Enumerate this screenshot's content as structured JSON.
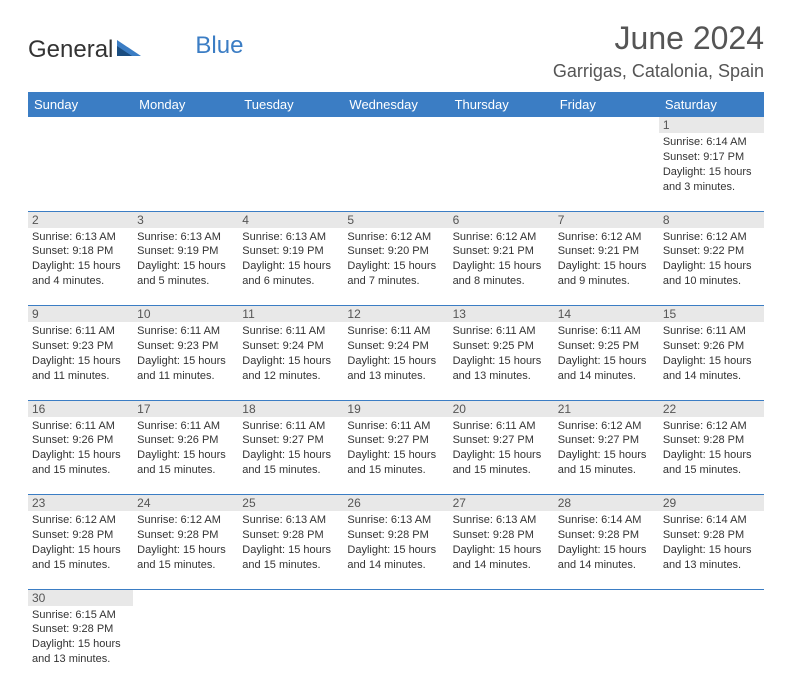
{
  "logo": {
    "text1": "General",
    "text2": "Blue"
  },
  "header": {
    "title": "June 2024",
    "location": "Garrigas, Catalonia, Spain"
  },
  "daysOfWeek": [
    "Sunday",
    "Monday",
    "Tuesday",
    "Wednesday",
    "Thursday",
    "Friday",
    "Saturday"
  ],
  "colors": {
    "accent": "#3b7dc4",
    "grayRow": "#e8e8e8"
  },
  "days": {
    "d1": {
      "num": "1",
      "sunrise": "Sunrise: 6:14 AM",
      "sunset": "Sunset: 9:17 PM",
      "daylight": "Daylight: 15 hours and 3 minutes."
    },
    "d2": {
      "num": "2",
      "sunrise": "Sunrise: 6:13 AM",
      "sunset": "Sunset: 9:18 PM",
      "daylight": "Daylight: 15 hours and 4 minutes."
    },
    "d3": {
      "num": "3",
      "sunrise": "Sunrise: 6:13 AM",
      "sunset": "Sunset: 9:19 PM",
      "daylight": "Daylight: 15 hours and 5 minutes."
    },
    "d4": {
      "num": "4",
      "sunrise": "Sunrise: 6:13 AM",
      "sunset": "Sunset: 9:19 PM",
      "daylight": "Daylight: 15 hours and 6 minutes."
    },
    "d5": {
      "num": "5",
      "sunrise": "Sunrise: 6:12 AM",
      "sunset": "Sunset: 9:20 PM",
      "daylight": "Daylight: 15 hours and 7 minutes."
    },
    "d6": {
      "num": "6",
      "sunrise": "Sunrise: 6:12 AM",
      "sunset": "Sunset: 9:21 PM",
      "daylight": "Daylight: 15 hours and 8 minutes."
    },
    "d7": {
      "num": "7",
      "sunrise": "Sunrise: 6:12 AM",
      "sunset": "Sunset: 9:21 PM",
      "daylight": "Daylight: 15 hours and 9 minutes."
    },
    "d8": {
      "num": "8",
      "sunrise": "Sunrise: 6:12 AM",
      "sunset": "Sunset: 9:22 PM",
      "daylight": "Daylight: 15 hours and 10 minutes."
    },
    "d9": {
      "num": "9",
      "sunrise": "Sunrise: 6:11 AM",
      "sunset": "Sunset: 9:23 PM",
      "daylight": "Daylight: 15 hours and 11 minutes."
    },
    "d10": {
      "num": "10",
      "sunrise": "Sunrise: 6:11 AM",
      "sunset": "Sunset: 9:23 PM",
      "daylight": "Daylight: 15 hours and 11 minutes."
    },
    "d11": {
      "num": "11",
      "sunrise": "Sunrise: 6:11 AM",
      "sunset": "Sunset: 9:24 PM",
      "daylight": "Daylight: 15 hours and 12 minutes."
    },
    "d12": {
      "num": "12",
      "sunrise": "Sunrise: 6:11 AM",
      "sunset": "Sunset: 9:24 PM",
      "daylight": "Daylight: 15 hours and 13 minutes."
    },
    "d13": {
      "num": "13",
      "sunrise": "Sunrise: 6:11 AM",
      "sunset": "Sunset: 9:25 PM",
      "daylight": "Daylight: 15 hours and 13 minutes."
    },
    "d14": {
      "num": "14",
      "sunrise": "Sunrise: 6:11 AM",
      "sunset": "Sunset: 9:25 PM",
      "daylight": "Daylight: 15 hours and 14 minutes."
    },
    "d15": {
      "num": "15",
      "sunrise": "Sunrise: 6:11 AM",
      "sunset": "Sunset: 9:26 PM",
      "daylight": "Daylight: 15 hours and 14 minutes."
    },
    "d16": {
      "num": "16",
      "sunrise": "Sunrise: 6:11 AM",
      "sunset": "Sunset: 9:26 PM",
      "daylight": "Daylight: 15 hours and 15 minutes."
    },
    "d17": {
      "num": "17",
      "sunrise": "Sunrise: 6:11 AM",
      "sunset": "Sunset: 9:26 PM",
      "daylight": "Daylight: 15 hours and 15 minutes."
    },
    "d18": {
      "num": "18",
      "sunrise": "Sunrise: 6:11 AM",
      "sunset": "Sunset: 9:27 PM",
      "daylight": "Daylight: 15 hours and 15 minutes."
    },
    "d19": {
      "num": "19",
      "sunrise": "Sunrise: 6:11 AM",
      "sunset": "Sunset: 9:27 PM",
      "daylight": "Daylight: 15 hours and 15 minutes."
    },
    "d20": {
      "num": "20",
      "sunrise": "Sunrise: 6:11 AM",
      "sunset": "Sunset: 9:27 PM",
      "daylight": "Daylight: 15 hours and 15 minutes."
    },
    "d21": {
      "num": "21",
      "sunrise": "Sunrise: 6:12 AM",
      "sunset": "Sunset: 9:27 PM",
      "daylight": "Daylight: 15 hours and 15 minutes."
    },
    "d22": {
      "num": "22",
      "sunrise": "Sunrise: 6:12 AM",
      "sunset": "Sunset: 9:28 PM",
      "daylight": "Daylight: 15 hours and 15 minutes."
    },
    "d23": {
      "num": "23",
      "sunrise": "Sunrise: 6:12 AM",
      "sunset": "Sunset: 9:28 PM",
      "daylight": "Daylight: 15 hours and 15 minutes."
    },
    "d24": {
      "num": "24",
      "sunrise": "Sunrise: 6:12 AM",
      "sunset": "Sunset: 9:28 PM",
      "daylight": "Daylight: 15 hours and 15 minutes."
    },
    "d25": {
      "num": "25",
      "sunrise": "Sunrise: 6:13 AM",
      "sunset": "Sunset: 9:28 PM",
      "daylight": "Daylight: 15 hours and 15 minutes."
    },
    "d26": {
      "num": "26",
      "sunrise": "Sunrise: 6:13 AM",
      "sunset": "Sunset: 9:28 PM",
      "daylight": "Daylight: 15 hours and 14 minutes."
    },
    "d27": {
      "num": "27",
      "sunrise": "Sunrise: 6:13 AM",
      "sunset": "Sunset: 9:28 PM",
      "daylight": "Daylight: 15 hours and 14 minutes."
    },
    "d28": {
      "num": "28",
      "sunrise": "Sunrise: 6:14 AM",
      "sunset": "Sunset: 9:28 PM",
      "daylight": "Daylight: 15 hours and 14 minutes."
    },
    "d29": {
      "num": "29",
      "sunrise": "Sunrise: 6:14 AM",
      "sunset": "Sunset: 9:28 PM",
      "daylight": "Daylight: 15 hours and 13 minutes."
    },
    "d30": {
      "num": "30",
      "sunrise": "Sunrise: 6:15 AM",
      "sunset": "Sunset: 9:28 PM",
      "daylight": "Daylight: 15 hours and 13 minutes."
    }
  }
}
